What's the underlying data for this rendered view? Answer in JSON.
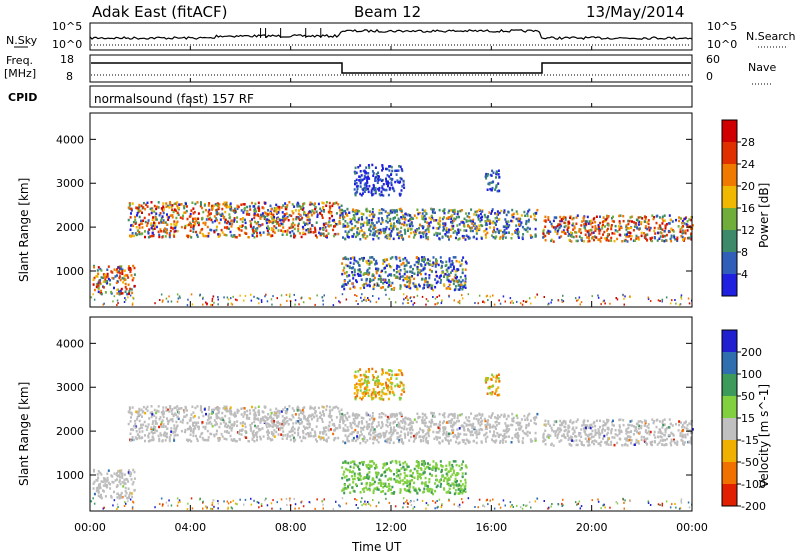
{
  "header": {
    "site": "Adak East (fitACF)",
    "beam": "Beam 12",
    "date": "13/May/2014"
  },
  "summary": {
    "nsky_label": "N.Sky",
    "nsky_ticks": [
      "10^5",
      "10^0"
    ],
    "nsearch_label": "N.Search",
    "freq_label": "Freq.",
    "freq_unit": "[MHz]",
    "freq_ticks": [
      "18",
      "8"
    ],
    "nave_label": "Nave",
    "nave_ticks": [
      "60",
      "0"
    ],
    "cpid_label": "CPID",
    "cpid_text": "normalsound (fast) 157 RF"
  },
  "chart_data": [
    {
      "type": "heatmap",
      "name": "power-panel",
      "ylabel": "Slant Range [km]",
      "yticks": [
        "1000",
        "2000",
        "3000",
        "4000"
      ],
      "yrange_km": [
        180,
        4600
      ],
      "colorbar_label": "Power [dB]",
      "colorbar_ticks": [
        "4",
        "8",
        "12",
        "16",
        "20",
        "24",
        "28"
      ],
      "colorbar_colors": [
        "#2020e0",
        "#2f5fb8",
        "#3c8a6a",
        "#6fae3a",
        "#f0b800",
        "#f07a00",
        "#e03000",
        "#d00000"
      ],
      "echo_regions": [
        {
          "t0": 0.1,
          "t1": 1.8,
          "r0": 450,
          "r1": 1100,
          "level": "strong"
        },
        {
          "t0": 1.5,
          "t1": 10.0,
          "r0": 1750,
          "r1": 2550,
          "level": "strong"
        },
        {
          "t0": 10.0,
          "t1": 17.8,
          "r0": 1700,
          "r1": 2400,
          "level": "medium"
        },
        {
          "t0": 10.0,
          "t1": 15.0,
          "r0": 550,
          "r1": 1300,
          "level": "medium"
        },
        {
          "t0": 18.0,
          "t1": 24.0,
          "r0": 1650,
          "r1": 2250,
          "level": "strong"
        },
        {
          "t0": 10.5,
          "t1": 12.5,
          "r0": 2700,
          "r1": 3400,
          "level": "weak"
        },
        {
          "t0": 15.7,
          "t1": 16.3,
          "r0": 2800,
          "r1": 3300,
          "level": "weak"
        }
      ]
    },
    {
      "type": "heatmap",
      "name": "velocity-panel",
      "ylabel": "Slant Range [km]",
      "yticks": [
        "1000",
        "2000",
        "3000",
        "4000"
      ],
      "yrange_km": [
        180,
        4600
      ],
      "colorbar_label": "Velocity [m s^-1]",
      "colorbar_ticks": [
        "200",
        "100",
        "50",
        "15",
        "-15",
        "-50",
        "-100",
        "-200"
      ],
      "colorbar_colors": [
        "#2020d0",
        "#2f6fb0",
        "#3c9a5a",
        "#80d040",
        "#c0c0c0",
        "#f0b000",
        "#f07000",
        "#e02000"
      ],
      "xlabel": "Time UT",
      "xticks": [
        "00:00",
        "04:00",
        "08:00",
        "12:00",
        "16:00",
        "20:00",
        "00:00"
      ],
      "xrange_hours": [
        0,
        24
      ]
    }
  ],
  "colors": {
    "ground_scatter_gray": "#bdbdbd",
    "accent_red": "#e02000"
  }
}
